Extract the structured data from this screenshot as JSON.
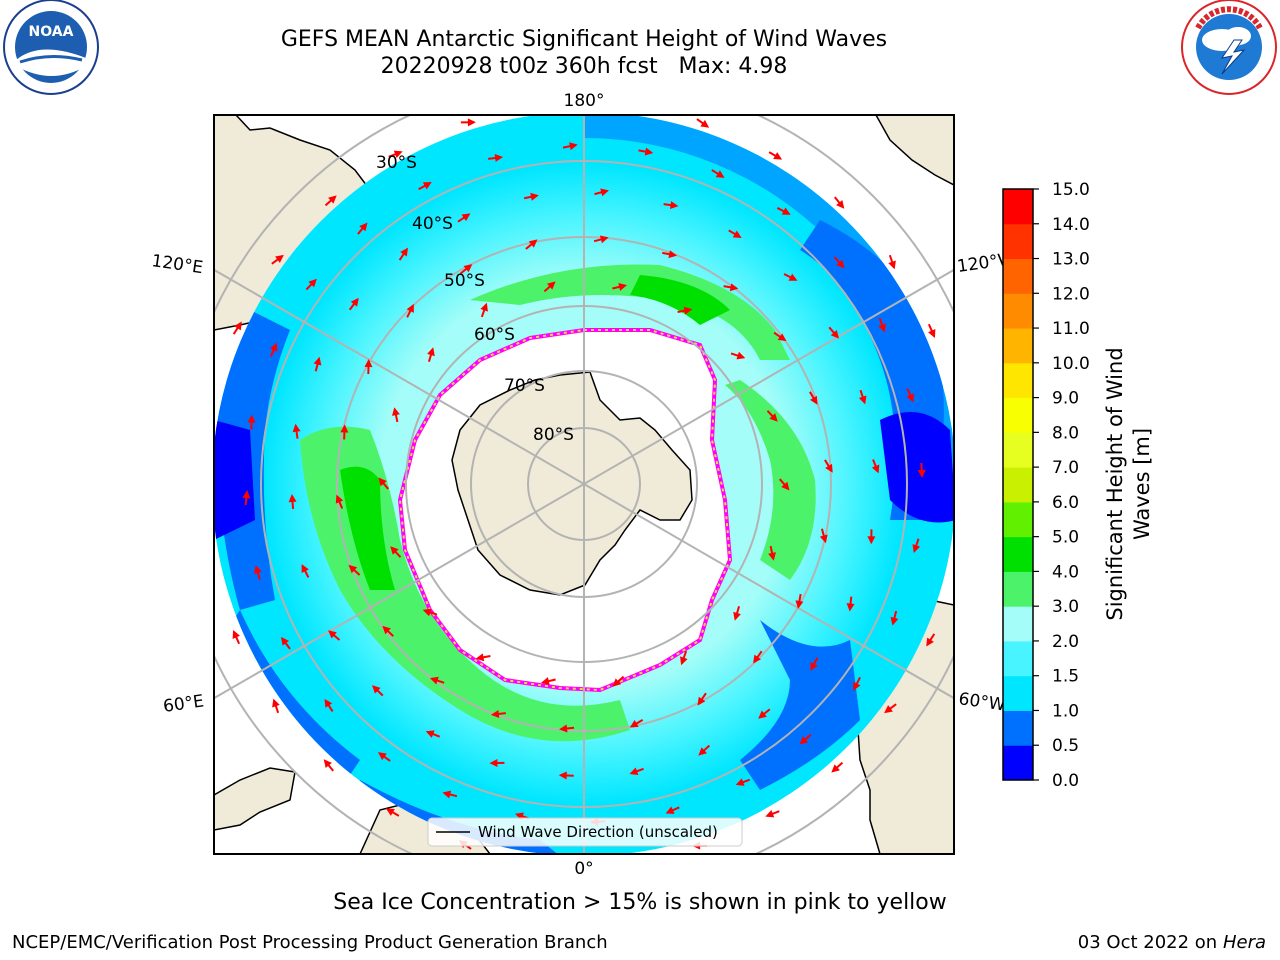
{
  "title": {
    "line1": "GEFS MEAN Antarctic Significant Height of Wind Waves",
    "line2": "20220928 t00z 360h fcst   Max: 4.98"
  },
  "map": {
    "projection": "south polar stereographic",
    "longitude_labels": {
      "top": "180°",
      "bottom": "0°",
      "upper_left": "120°E",
      "lower_left": "60°E",
      "upper_right": "120°W",
      "lower_right": "60°W"
    },
    "latitude_labels": [
      "30°S",
      "40°S",
      "50°S",
      "60°S",
      "70°S",
      "80°S"
    ],
    "legend_label": "Wind Wave Direction (unscaled)",
    "colors": {
      "land": "#efebd8",
      "sea_ice_edge": [
        "#ff00ff",
        "#ff6ad5",
        "#ffd54a"
      ],
      "arrow": "#ff0000",
      "grid": "#b3b3b3"
    }
  },
  "colorbar": {
    "label": "Significant Height of Wind Waves [m]",
    "label_line1": "Significant Height of Wind",
    "label_line2": "Waves [m]",
    "ticks": [
      "15.0",
      "14.0",
      "13.0",
      "12.0",
      "11.0",
      "10.0",
      "9.0",
      "8.0",
      "7.0",
      "6.0",
      "5.0",
      "4.0",
      "3.0",
      "2.0",
      "1.5",
      "1.0",
      "0.5",
      "0.0"
    ],
    "levels_bottom_to_top": [
      {
        "from": 0.0,
        "to": 0.5,
        "color": "#0000ff"
      },
      {
        "from": 0.5,
        "to": 1.0,
        "color": "#0070ff"
      },
      {
        "from": 1.0,
        "to": 1.5,
        "color": "#00e6ff"
      },
      {
        "from": 1.5,
        "to": 2.0,
        "color": "#48f4ff"
      },
      {
        "from": 2.0,
        "to": 3.0,
        "color": "#a4fdf8"
      },
      {
        "from": 3.0,
        "to": 4.0,
        "color": "#4cf36a"
      },
      {
        "from": 4.0,
        "to": 5.0,
        "color": "#00e000"
      },
      {
        "from": 5.0,
        "to": 6.0,
        "color": "#60f000"
      },
      {
        "from": 6.0,
        "to": 7.0,
        "color": "#c8f000"
      },
      {
        "from": 7.0,
        "to": 8.0,
        "color": "#e6ff20"
      },
      {
        "from": 8.0,
        "to": 9.0,
        "color": "#f8ff00"
      },
      {
        "from": 9.0,
        "to": 10.0,
        "color": "#ffe600"
      },
      {
        "from": 10.0,
        "to": 11.0,
        "color": "#ffb400"
      },
      {
        "from": 11.0,
        "to": 12.0,
        "color": "#ff8c00"
      },
      {
        "from": 12.0,
        "to": 13.0,
        "color": "#ff6400"
      },
      {
        "from": 13.0,
        "to": 14.0,
        "color": "#ff3200"
      },
      {
        "from": 14.0,
        "to": 15.0,
        "color": "#ff0000"
      }
    ]
  },
  "caption": "Sea Ice Concentration > 15% is shown in pink to yellow",
  "footer": {
    "left": "NCEP/EMC/Verification Post Processing Product Generation Branch",
    "right_prefix": "03 Oct 2022 on ",
    "right_machine": "Hera"
  },
  "logos": {
    "noaa": {
      "text": "NOAA",
      "ring_text": "NATIONAL OCEANIC AND ATMOSPHERIC ADMINISTRATION",
      "bottom_text": "U.S. DEPARTMENT OF COMMERCE"
    },
    "nws": {
      "ring_text": "NATIONAL WEATHER SERVICE"
    }
  }
}
